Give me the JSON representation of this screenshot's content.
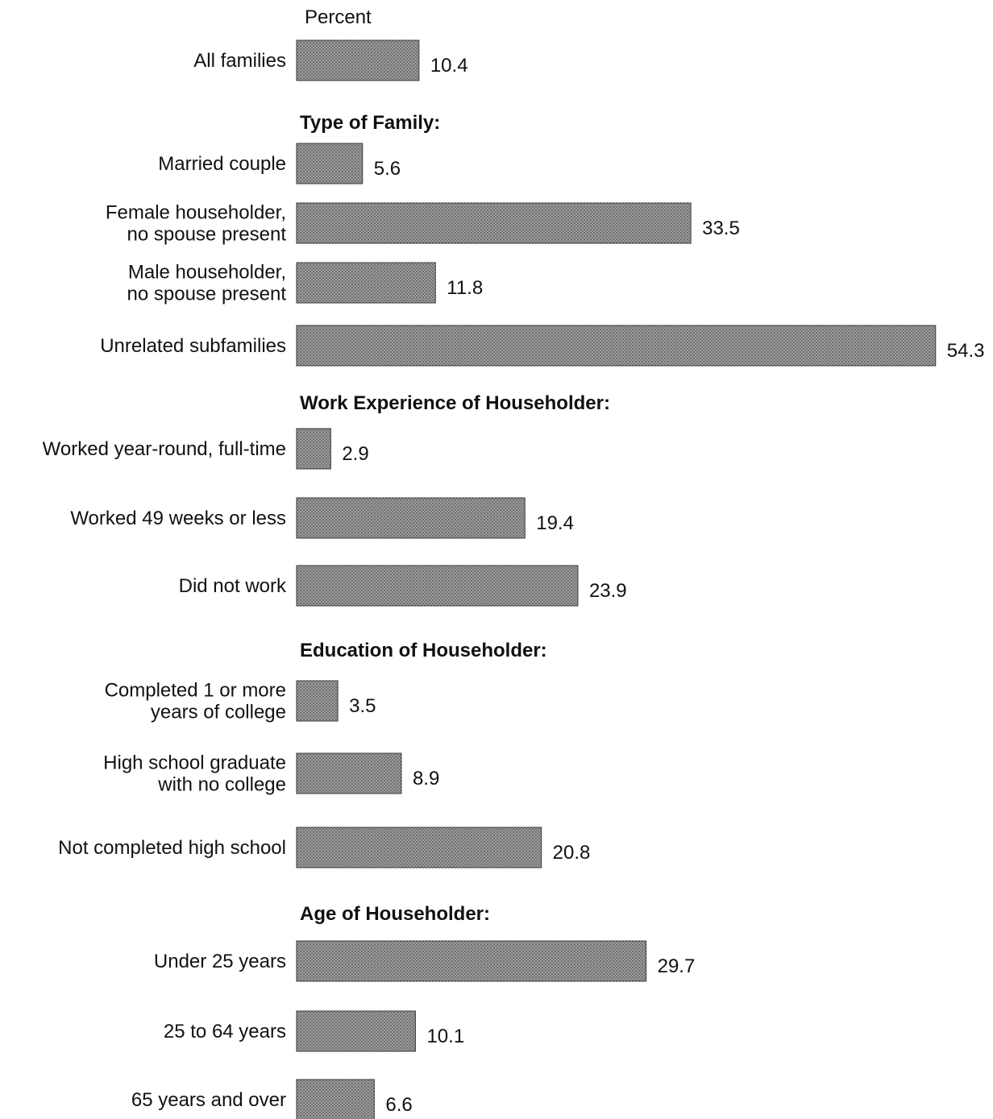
{
  "chart_data": {
    "type": "bar",
    "orientation": "horizontal",
    "unit_label": "Percent",
    "bar_color": "#8a8a8a",
    "groups": [
      {
        "header": "",
        "items": [
          {
            "label": [
              "All families"
            ],
            "value": 10.4,
            "value_label": "10.4"
          }
        ]
      },
      {
        "header": "Type of Family:",
        "items": [
          {
            "label": [
              "Married couple"
            ],
            "value": 5.6,
            "value_label": "5.6"
          },
          {
            "label": [
              "Female householder,",
              "no spouse present"
            ],
            "value": 33.5,
            "value_label": "33.5"
          },
          {
            "label": [
              "Male householder,",
              "no spouse present"
            ],
            "value": 11.8,
            "value_label": "11.8"
          },
          {
            "label": [
              "Unrelated subfamilies"
            ],
            "value": 54.3,
            "value_label": "54.3"
          }
        ]
      },
      {
        "header": "Work Experience of Householder:",
        "items": [
          {
            "label": [
              "Worked year-round, full-time"
            ],
            "value": 2.9,
            "value_label": "2.9"
          },
          {
            "label": [
              "Worked 49 weeks or less"
            ],
            "value": 19.4,
            "value_label": "19.4"
          },
          {
            "label": [
              "Did not work"
            ],
            "value": 23.9,
            "value_label": "23.9"
          }
        ]
      },
      {
        "header": "Education of Householder:",
        "items": [
          {
            "label": [
              "Completed 1 or more",
              "years of college"
            ],
            "value": 3.5,
            "value_label": "3.5"
          },
          {
            "label": [
              "High school graduate",
              "with no college"
            ],
            "value": 8.9,
            "value_label": "8.9"
          },
          {
            "label": [
              "Not completed high school"
            ],
            "value": 20.8,
            "value_label": "20.8"
          }
        ]
      },
      {
        "header": "Age of Householder:",
        "items": [
          {
            "label": [
              "Under 25 years"
            ],
            "value": 29.7,
            "value_label": "29.7"
          },
          {
            "label": [
              "25 to 64 years"
            ],
            "value": 10.1,
            "value_label": "10.1"
          },
          {
            "label": [
              "65 years and over"
            ],
            "value": 6.6,
            "value_label": "6.6"
          }
        ]
      }
    ]
  }
}
